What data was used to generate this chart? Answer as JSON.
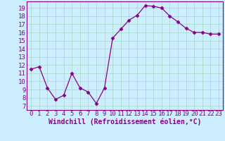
{
  "x": [
    0,
    1,
    2,
    3,
    4,
    5,
    6,
    7,
    8,
    9,
    10,
    11,
    12,
    13,
    14,
    15,
    16,
    17,
    18,
    19,
    20,
    21,
    22,
    23
  ],
  "y": [
    11.5,
    11.8,
    9.2,
    7.8,
    8.3,
    11.0,
    9.2,
    8.7,
    7.3,
    9.2,
    15.3,
    16.4,
    17.5,
    18.1,
    19.3,
    19.2,
    19.0,
    18.0,
    17.3,
    16.5,
    16.0,
    16.0,
    15.8,
    15.8
  ],
  "line_color": "#880088",
  "marker": "D",
  "marker_size": 2.5,
  "bg_color": "#cceeff",
  "grid_color": "#aaddcc",
  "xlabel": "Windchill (Refroidissement éolien,°C)",
  "ylabel": "",
  "xlim": [
    -0.5,
    23.5
  ],
  "ylim": [
    6.5,
    19.8
  ],
  "yticks": [
    7,
    8,
    9,
    10,
    11,
    12,
    13,
    14,
    15,
    16,
    17,
    18,
    19
  ],
  "xticks": [
    0,
    1,
    2,
    3,
    4,
    5,
    6,
    7,
    8,
    9,
    10,
    11,
    12,
    13,
    14,
    15,
    16,
    17,
    18,
    19,
    20,
    21,
    22,
    23
  ],
  "xlabel_fontsize": 7.0,
  "tick_fontsize": 6.5,
  "spine_color": "#880088",
  "text_color": "#880088"
}
